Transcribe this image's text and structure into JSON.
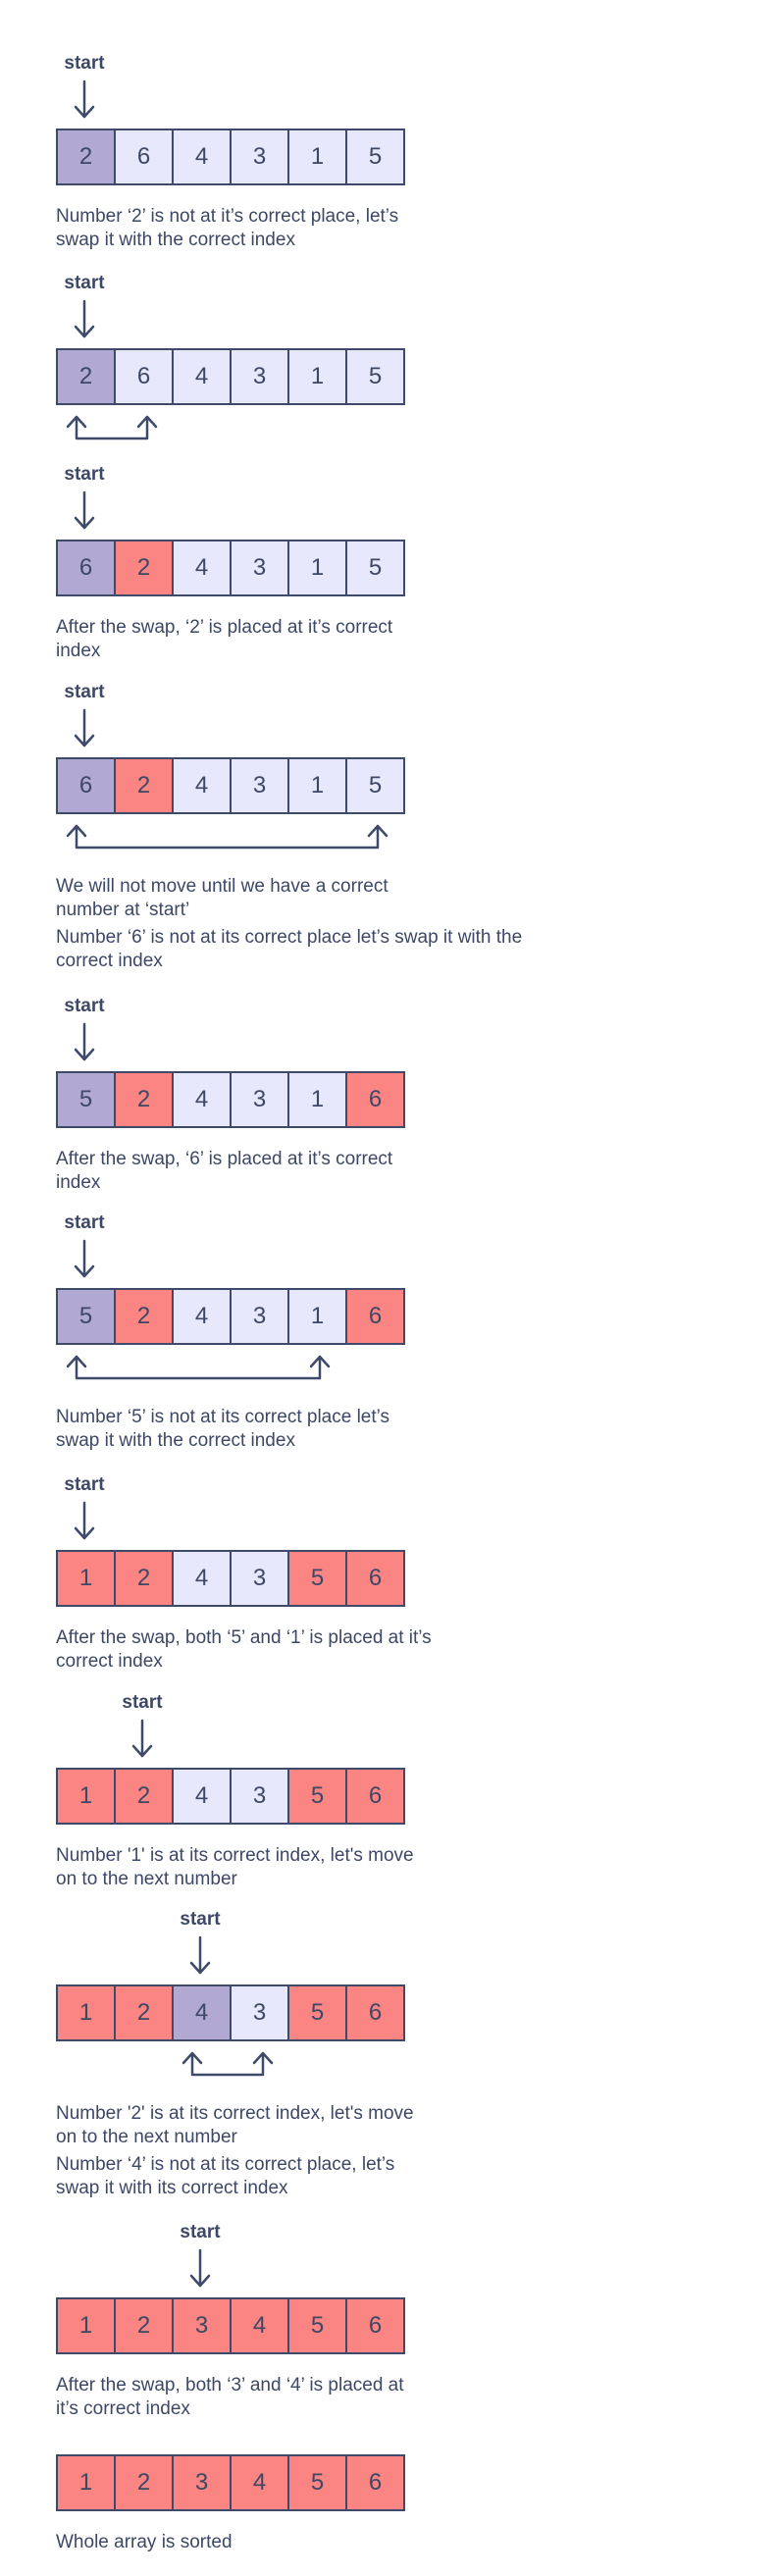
{
  "start_label": "start",
  "steps": [
    {
      "start_index": 0,
      "cells": [
        {
          "value": "2",
          "color": "purple"
        },
        {
          "value": "6",
          "color": "light"
        },
        {
          "value": "4",
          "color": "light"
        },
        {
          "value": "3",
          "color": "light"
        },
        {
          "value": "1",
          "color": "light"
        },
        {
          "value": "5",
          "color": "light"
        }
      ],
      "swap": null,
      "captions": [
        "Number ‘2’ is not at it’s correct place, let’s\nswap it with the correct index"
      ]
    },
    {
      "start_index": 0,
      "cells": [
        {
          "value": "2",
          "color": "purple"
        },
        {
          "value": "6",
          "color": "light"
        },
        {
          "value": "4",
          "color": "light"
        },
        {
          "value": "3",
          "color": "light"
        },
        {
          "value": "1",
          "color": "light"
        },
        {
          "value": "5",
          "color": "light"
        }
      ],
      "swap": [
        0,
        1
      ],
      "captions": []
    },
    {
      "start_index": 0,
      "cells": [
        {
          "value": "6",
          "color": "purple"
        },
        {
          "value": "2",
          "color": "red"
        },
        {
          "value": "4",
          "color": "light"
        },
        {
          "value": "3",
          "color": "light"
        },
        {
          "value": "1",
          "color": "light"
        },
        {
          "value": "5",
          "color": "light"
        }
      ],
      "swap": null,
      "captions": [
        "After the swap, ‘2’ is placed at it’s correct\nindex"
      ]
    },
    {
      "start_index": 0,
      "cells": [
        {
          "value": "6",
          "color": "purple"
        },
        {
          "value": "2",
          "color": "red"
        },
        {
          "value": "4",
          "color": "light"
        },
        {
          "value": "3",
          "color": "light"
        },
        {
          "value": "1",
          "color": "light"
        },
        {
          "value": "5",
          "color": "light"
        }
      ],
      "swap": [
        0,
        5
      ],
      "captions": [
        "We will not move until we have a correct\nnumber at ‘start’",
        "Number ‘6’ is not at its correct place let’s swap it with the\ncorrect index"
      ]
    },
    {
      "start_index": 0,
      "cells": [
        {
          "value": "5",
          "color": "purple"
        },
        {
          "value": "2",
          "color": "red"
        },
        {
          "value": "4",
          "color": "light"
        },
        {
          "value": "3",
          "color": "light"
        },
        {
          "value": "1",
          "color": "light"
        },
        {
          "value": "6",
          "color": "red"
        }
      ],
      "swap": null,
      "captions": [
        "After the swap, ‘6’ is placed at it’s correct\nindex"
      ]
    },
    {
      "start_index": 0,
      "cells": [
        {
          "value": "5",
          "color": "purple"
        },
        {
          "value": "2",
          "color": "red"
        },
        {
          "value": "4",
          "color": "light"
        },
        {
          "value": "3",
          "color": "light"
        },
        {
          "value": "1",
          "color": "light"
        },
        {
          "value": "6",
          "color": "red"
        }
      ],
      "swap": [
        0,
        4
      ],
      "captions": [
        "Number ‘5’ is not at its correct place let’s\nswap it with the correct index"
      ]
    },
    {
      "start_index": 0,
      "cells": [
        {
          "value": "1",
          "color": "red"
        },
        {
          "value": "2",
          "color": "red"
        },
        {
          "value": "4",
          "color": "light"
        },
        {
          "value": "3",
          "color": "light"
        },
        {
          "value": "5",
          "color": "red"
        },
        {
          "value": "6",
          "color": "red"
        }
      ],
      "swap": null,
      "captions": [
        "After the swap, both ‘5’  and ‘1’ is placed at it’s\ncorrect index"
      ]
    },
    {
      "start_index": 1,
      "cells": [
        {
          "value": "1",
          "color": "red"
        },
        {
          "value": "2",
          "color": "red"
        },
        {
          "value": "4",
          "color": "light"
        },
        {
          "value": "3",
          "color": "light"
        },
        {
          "value": "5",
          "color": "red"
        },
        {
          "value": "6",
          "color": "red"
        }
      ],
      "swap": null,
      "captions": [
        "Number '1' is at its correct index, let's move\non to the next number"
      ]
    },
    {
      "start_index": 2,
      "cells": [
        {
          "value": "1",
          "color": "red"
        },
        {
          "value": "2",
          "color": "red"
        },
        {
          "value": "4",
          "color": "purple"
        },
        {
          "value": "3",
          "color": "light"
        },
        {
          "value": "5",
          "color": "red"
        },
        {
          "value": "6",
          "color": "red"
        }
      ],
      "swap": [
        2,
        3
      ],
      "captions": [
        "Number '2' is at its correct index, let's move\non to the next number",
        "Number ‘4’ is not at its correct place, let’s\nswap it with its correct index"
      ]
    },
    {
      "start_index": 2,
      "cells": [
        {
          "value": "1",
          "color": "red"
        },
        {
          "value": "2",
          "color": "red"
        },
        {
          "value": "3",
          "color": "red"
        },
        {
          "value": "4",
          "color": "red"
        },
        {
          "value": "5",
          "color": "red"
        },
        {
          "value": "6",
          "color": "red"
        }
      ],
      "swap": null,
      "captions": [
        "After the swap, both ‘3’  and ‘4’ is placed at\nit’s correct index"
      ]
    },
    {
      "start_index": null,
      "cells": [
        {
          "value": "1",
          "color": "red"
        },
        {
          "value": "2",
          "color": "red"
        },
        {
          "value": "3",
          "color": "red"
        },
        {
          "value": "4",
          "color": "red"
        },
        {
          "value": "5",
          "color": "red"
        },
        {
          "value": "6",
          "color": "red"
        }
      ],
      "swap": null,
      "captions": [
        "Whole array is sorted"
      ]
    }
  ]
}
